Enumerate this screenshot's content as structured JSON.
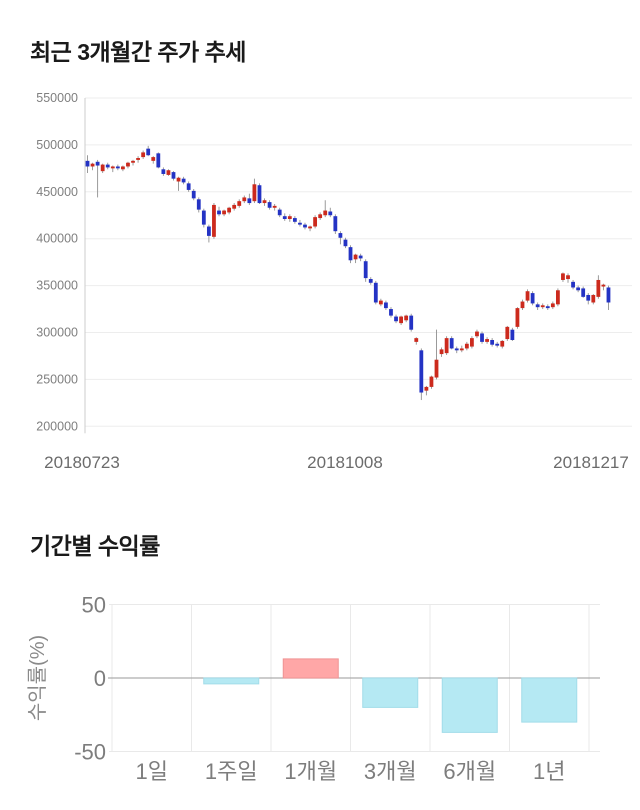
{
  "chart_data": [
    {
      "type": "candlestick",
      "title": "최근 3개월간 주가 추세",
      "y_ticks": [
        550000,
        500000,
        450000,
        400000,
        350000,
        300000,
        250000,
        200000
      ],
      "y_range": [
        200000,
        550000
      ],
      "x_tick_labels": [
        "20180723",
        "20181008",
        "20181217"
      ],
      "colors": {
        "up": "#cc2a1d",
        "down": "#2433c4",
        "wick": "#909090"
      },
      "ohlc": [
        [
          483000,
          489000,
          470000,
          477000
        ],
        [
          477000,
          481000,
          473000,
          480000
        ],
        [
          482000,
          484000,
          444000,
          478000
        ],
        [
          472000,
          480000,
          470000,
          479000
        ],
        [
          479000,
          481000,
          474000,
          476000
        ],
        [
          475000,
          478000,
          471000,
          477000
        ],
        [
          477000,
          479000,
          473000,
          475000
        ],
        [
          474000,
          478000,
          472000,
          477000
        ],
        [
          477000,
          482000,
          475000,
          481000
        ],
        [
          481000,
          484000,
          478000,
          483000
        ],
        [
          484000,
          488000,
          481000,
          486000
        ],
        [
          487000,
          494000,
          485000,
          492000
        ],
        [
          496000,
          499000,
          488000,
          489000
        ],
        [
          483000,
          488000,
          480000,
          487000
        ],
        [
          491000,
          492000,
          475000,
          476000
        ],
        [
          474000,
          476000,
          467000,
          469000
        ],
        [
          468000,
          474000,
          467000,
          473000
        ],
        [
          471000,
          472000,
          462000,
          464000
        ],
        [
          461000,
          466000,
          451000,
          465000
        ],
        [
          464000,
          466000,
          458000,
          460000
        ],
        [
          459000,
          461000,
          450000,
          452000
        ],
        [
          451000,
          453000,
          441000,
          443000
        ],
        [
          442000,
          444000,
          428000,
          431000
        ],
        [
          430000,
          432000,
          412000,
          415000
        ],
        [
          413000,
          415000,
          396000,
          403000
        ],
        [
          402000,
          438000,
          400000,
          436000
        ],
        [
          430000,
          434000,
          424000,
          426000
        ],
        [
          426000,
          431000,
          424000,
          430000
        ],
        [
          428000,
          434000,
          426000,
          433000
        ],
        [
          432000,
          438000,
          430000,
          436000
        ],
        [
          435000,
          442000,
          433000,
          440000
        ],
        [
          440000,
          446000,
          438000,
          444000
        ],
        [
          443000,
          448000,
          436000,
          438000
        ],
        [
          440000,
          464000,
          438000,
          458000
        ],
        [
          457000,
          459000,
          437000,
          438000
        ],
        [
          438000,
          443000,
          435000,
          441000
        ],
        [
          439000,
          441000,
          431000,
          433000
        ],
        [
          433000,
          437000,
          430000,
          435000
        ],
        [
          431000,
          433000,
          423000,
          425000
        ],
        [
          424000,
          427000,
          419000,
          421000
        ],
        [
          421000,
          426000,
          418000,
          424000
        ],
        [
          422000,
          424000,
          416000,
          418000
        ],
        [
          417000,
          420000,
          413000,
          415000
        ],
        [
          415000,
          417000,
          410000,
          412000
        ],
        [
          411000,
          414000,
          408000,
          413000
        ],
        [
          413000,
          425000,
          411000,
          423000
        ],
        [
          422000,
          428000,
          420000,
          426000
        ],
        [
          425000,
          441000,
          423000,
          430000
        ],
        [
          429000,
          433000,
          423000,
          425000
        ],
        [
          424000,
          426000,
          405000,
          408000
        ],
        [
          406000,
          408000,
          394000,
          401000
        ],
        [
          399000,
          401000,
          390000,
          392000
        ],
        [
          391000,
          393000,
          374000,
          377000
        ],
        [
          378000,
          384000,
          374000,
          383000
        ],
        [
          382000,
          384000,
          376000,
          379000
        ],
        [
          376000,
          378000,
          354000,
          358000
        ],
        [
          357000,
          359000,
          351000,
          353000
        ],
        [
          353000,
          355000,
          330000,
          332000
        ],
        [
          330000,
          336000,
          328000,
          334000
        ],
        [
          332000,
          334000,
          324000,
          326000
        ],
        [
          325000,
          327000,
          316000,
          318000
        ],
        [
          317000,
          319000,
          310000,
          312000
        ],
        [
          310000,
          318000,
          308000,
          317000
        ],
        [
          313000,
          319000,
          311000,
          318000
        ],
        [
          318000,
          320000,
          301000,
          303000
        ],
        [
          290000,
          295000,
          287000,
          294000
        ],
        [
          281000,
          283000,
          228000,
          236000
        ],
        [
          238000,
          243000,
          233000,
          242000
        ],
        [
          242000,
          254000,
          240000,
          253000
        ],
        [
          252000,
          303000,
          250000,
          271000
        ],
        [
          277000,
          284000,
          274000,
          282000
        ],
        [
          278000,
          296000,
          276000,
          294000
        ],
        [
          294000,
          296000,
          282000,
          283000
        ],
        [
          283000,
          285000,
          278000,
          281000
        ],
        [
          281000,
          286000,
          279000,
          283000
        ],
        [
          283000,
          290000,
          281000,
          288000
        ],
        [
          285000,
          296000,
          283000,
          294000
        ],
        [
          296000,
          303000,
          294000,
          301000
        ],
        [
          299000,
          301000,
          288000,
          290000
        ],
        [
          290000,
          295000,
          288000,
          293000
        ],
        [
          292000,
          294000,
          285000,
          287000
        ],
        [
          288000,
          290000,
          284000,
          286000
        ],
        [
          285000,
          292000,
          283000,
          291000
        ],
        [
          293000,
          307000,
          291000,
          306000
        ],
        [
          303000,
          305000,
          291000,
          292000
        ],
        [
          306000,
          327000,
          304000,
          326000
        ],
        [
          326000,
          335000,
          324000,
          333000
        ],
        [
          334000,
          346000,
          332000,
          344000
        ],
        [
          342000,
          344000,
          329000,
          331000
        ],
        [
          330000,
          332000,
          324000,
          327000
        ],
        [
          327000,
          331000,
          325000,
          329000
        ],
        [
          328000,
          330000,
          324000,
          326000
        ],
        [
          327000,
          333000,
          325000,
          331000
        ],
        [
          330000,
          347000,
          328000,
          345000
        ],
        [
          356000,
          364000,
          354000,
          363000
        ],
        [
          357000,
          363000,
          353000,
          361000
        ],
        [
          354000,
          356000,
          346000,
          348000
        ],
        [
          348000,
          350000,
          343000,
          345000
        ],
        [
          347000,
          349000,
          337000,
          338000
        ],
        [
          340000,
          342000,
          330000,
          334000
        ],
        [
          332000,
          341000,
          330000,
          340000
        ],
        [
          338000,
          361000,
          336000,
          356000
        ],
        [
          349000,
          352000,
          345000,
          351000
        ],
        [
          348000,
          350000,
          324000,
          332000
        ]
      ]
    },
    {
      "type": "bar",
      "title": "기간별 수익률",
      "categories": [
        "1일",
        "1주일",
        "1개월",
        "3개월",
        "6개월",
        "1년"
      ],
      "values": [
        0,
        -4,
        13,
        -20,
        -37,
        -30
      ],
      "ylabel": "수익률(%)",
      "ylim": [
        -50,
        50
      ],
      "y_ticks": [
        50,
        0,
        -50
      ],
      "colors": {
        "positive": "#ffa7a7",
        "positive_border": "#ef9494",
        "negative": "#b5e9f3",
        "negative_border": "#a2dce9"
      }
    }
  ]
}
